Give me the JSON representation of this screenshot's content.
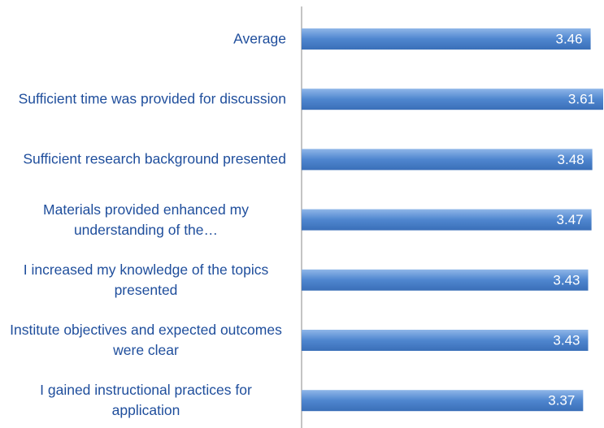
{
  "chart_data": {
    "type": "bar",
    "orientation": "horizontal",
    "categories": [
      "Average",
      "Sufficient time was provided for discussion",
      "Sufficient research background presented",
      "Materials provided enhanced my understanding of the…",
      "I increased my knowledge of the topics presented",
      "Institute objectives and expected outcomes were clear",
      "I gained instructional practices for application"
    ],
    "values": [
      3.46,
      3.61,
      3.48,
      3.47,
      3.43,
      3.43,
      3.37
    ],
    "color": "#4f86cf"
  }
}
